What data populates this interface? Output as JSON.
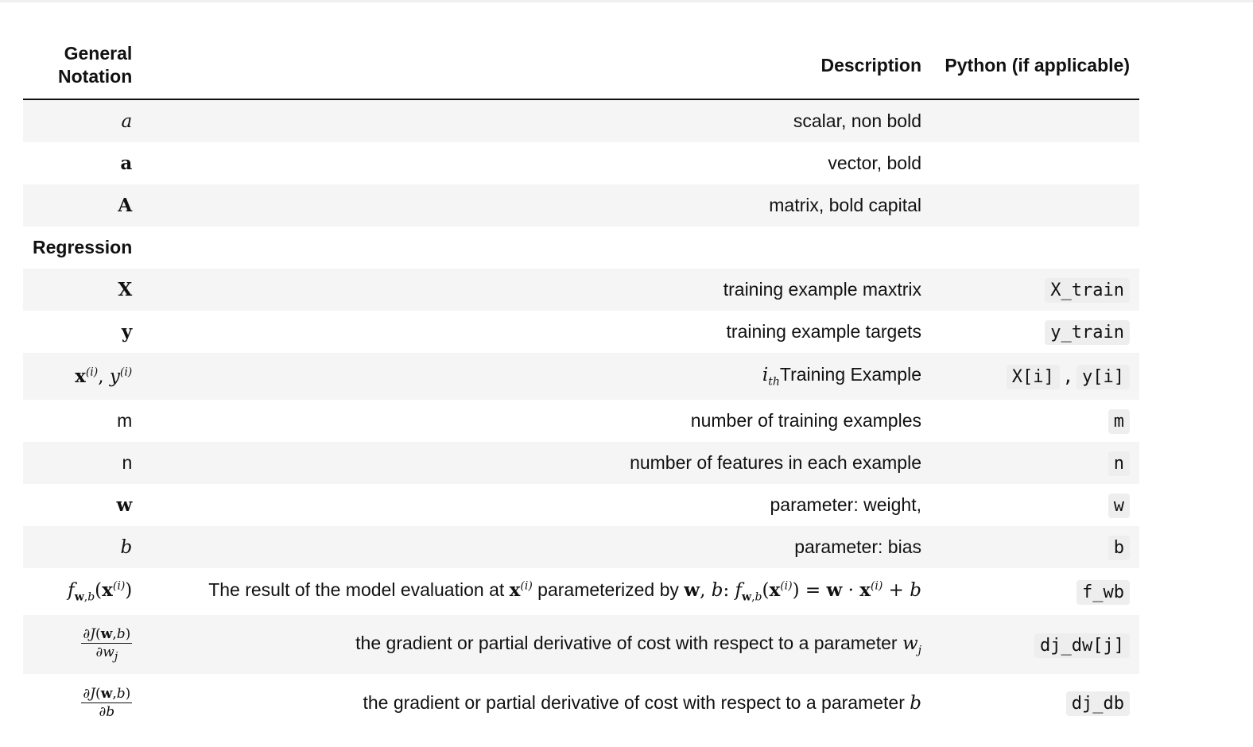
{
  "header": {
    "col1": "General Notation",
    "col2": "Description",
    "col3": "Python (if applicable)"
  },
  "rows": [
    {
      "notation": "a",
      "description": "scalar, non bold",
      "python": ""
    },
    {
      "notation": "a",
      "description": "vector, bold",
      "python": ""
    },
    {
      "notation": "A",
      "description": "matrix, bold capital",
      "python": ""
    },
    {
      "notation": "Regression",
      "description": "",
      "python": ""
    },
    {
      "notation": "X",
      "description": "training example maxtrix",
      "python": "X_train"
    },
    {
      "notation": "y",
      "description": "training example targets",
      "python": "y_train"
    },
    {
      "notation": "x(i), y(i)",
      "description": "ith Training Example",
      "python": [
        "X[i]",
        ",",
        "y[i]"
      ]
    },
    {
      "notation": "m",
      "description": "number of training examples",
      "python": "m"
    },
    {
      "notation": "n",
      "description": "number of features in each example",
      "python": "n"
    },
    {
      "notation": "w",
      "description": "parameter: weight,",
      "python": "w"
    },
    {
      "notation": "b",
      "description": "parameter: bias",
      "python": "b"
    },
    {
      "notation": "fw,b(x(i))",
      "description": "The result of the model evaluation at x(i) parameterized by w, b: fw,b(x(i)) = w · x(i) + b",
      "python": "f_wb"
    },
    {
      "notation": "∂J(w,b)/∂wj",
      "description": "the gradient or partial derivative of cost with respect to a parameter wj",
      "python": "dj_dw[j]"
    },
    {
      "notation": "∂J(w,b)/∂b",
      "description": "the gradient or partial derivative of cost with respect to a parameter b",
      "python": "dj_db"
    }
  ],
  "text": {
    "desc_ith_suffix": "Training Example",
    "desc_model_prefix": "The result of the model evaluation at",
    "desc_model_mid": "parameterized by",
    "desc_grad": "the gradient or partial derivative of cost with respect to a parameter"
  }
}
